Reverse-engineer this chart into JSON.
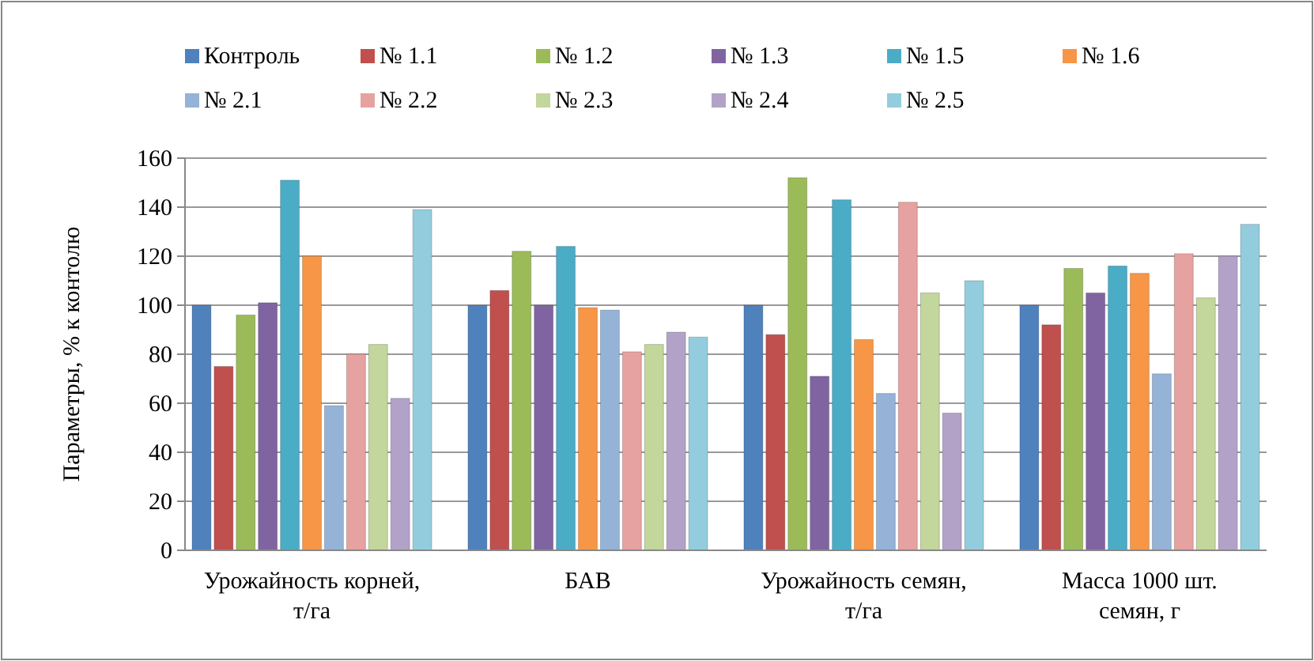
{
  "chart_data": {
    "type": "bar",
    "ylabel": "Параметры, % к контолю",
    "categories": [
      "Урожайность корней, т/га",
      "БАВ",
      "Урожайность семян, т/га",
      "Масса 1000 шт. семян, г"
    ],
    "series": [
      {
        "name": "Контроль",
        "color": "#4f81bd",
        "values": [
          100,
          100,
          100,
          100
        ]
      },
      {
        "name": "№ 1.1",
        "color": "#c0504d",
        "values": [
          75,
          106,
          88,
          92
        ]
      },
      {
        "name": "№ 1.2",
        "color": "#9bbb59",
        "values": [
          96,
          122,
          152,
          115
        ]
      },
      {
        "name": "№ 1.3",
        "color": "#8064a2",
        "values": [
          101,
          100,
          71,
          105
        ]
      },
      {
        "name": "№ 1.5",
        "color": "#4bacc6",
        "values": [
          151,
          124,
          143,
          116
        ]
      },
      {
        "name": "№ 1.6",
        "color": "#f79646",
        "values": [
          120,
          99,
          86,
          113
        ]
      },
      {
        "name": "№ 2.1",
        "color": "#95b3d7",
        "values": [
          59,
          98,
          64,
          72
        ]
      },
      {
        "name": "№ 2.2",
        "color": "#e6a2a0",
        "values": [
          80,
          81,
          142,
          121
        ]
      },
      {
        "name": "№ 2.3",
        "color": "#c3d69b",
        "values": [
          84,
          84,
          105,
          103
        ]
      },
      {
        "name": "№ 2.4",
        "color": "#b3a2c7",
        "values": [
          62,
          89,
          56,
          120
        ]
      },
      {
        "name": "№ 2.5",
        "color": "#93cddd",
        "values": [
          139,
          87,
          110,
          133
        ]
      }
    ],
    "ylim": [
      0,
      160
    ],
    "yticks": [
      0,
      20,
      40,
      60,
      80,
      100,
      120,
      140,
      160
    ],
    "grid": "y",
    "legend": "top"
  }
}
